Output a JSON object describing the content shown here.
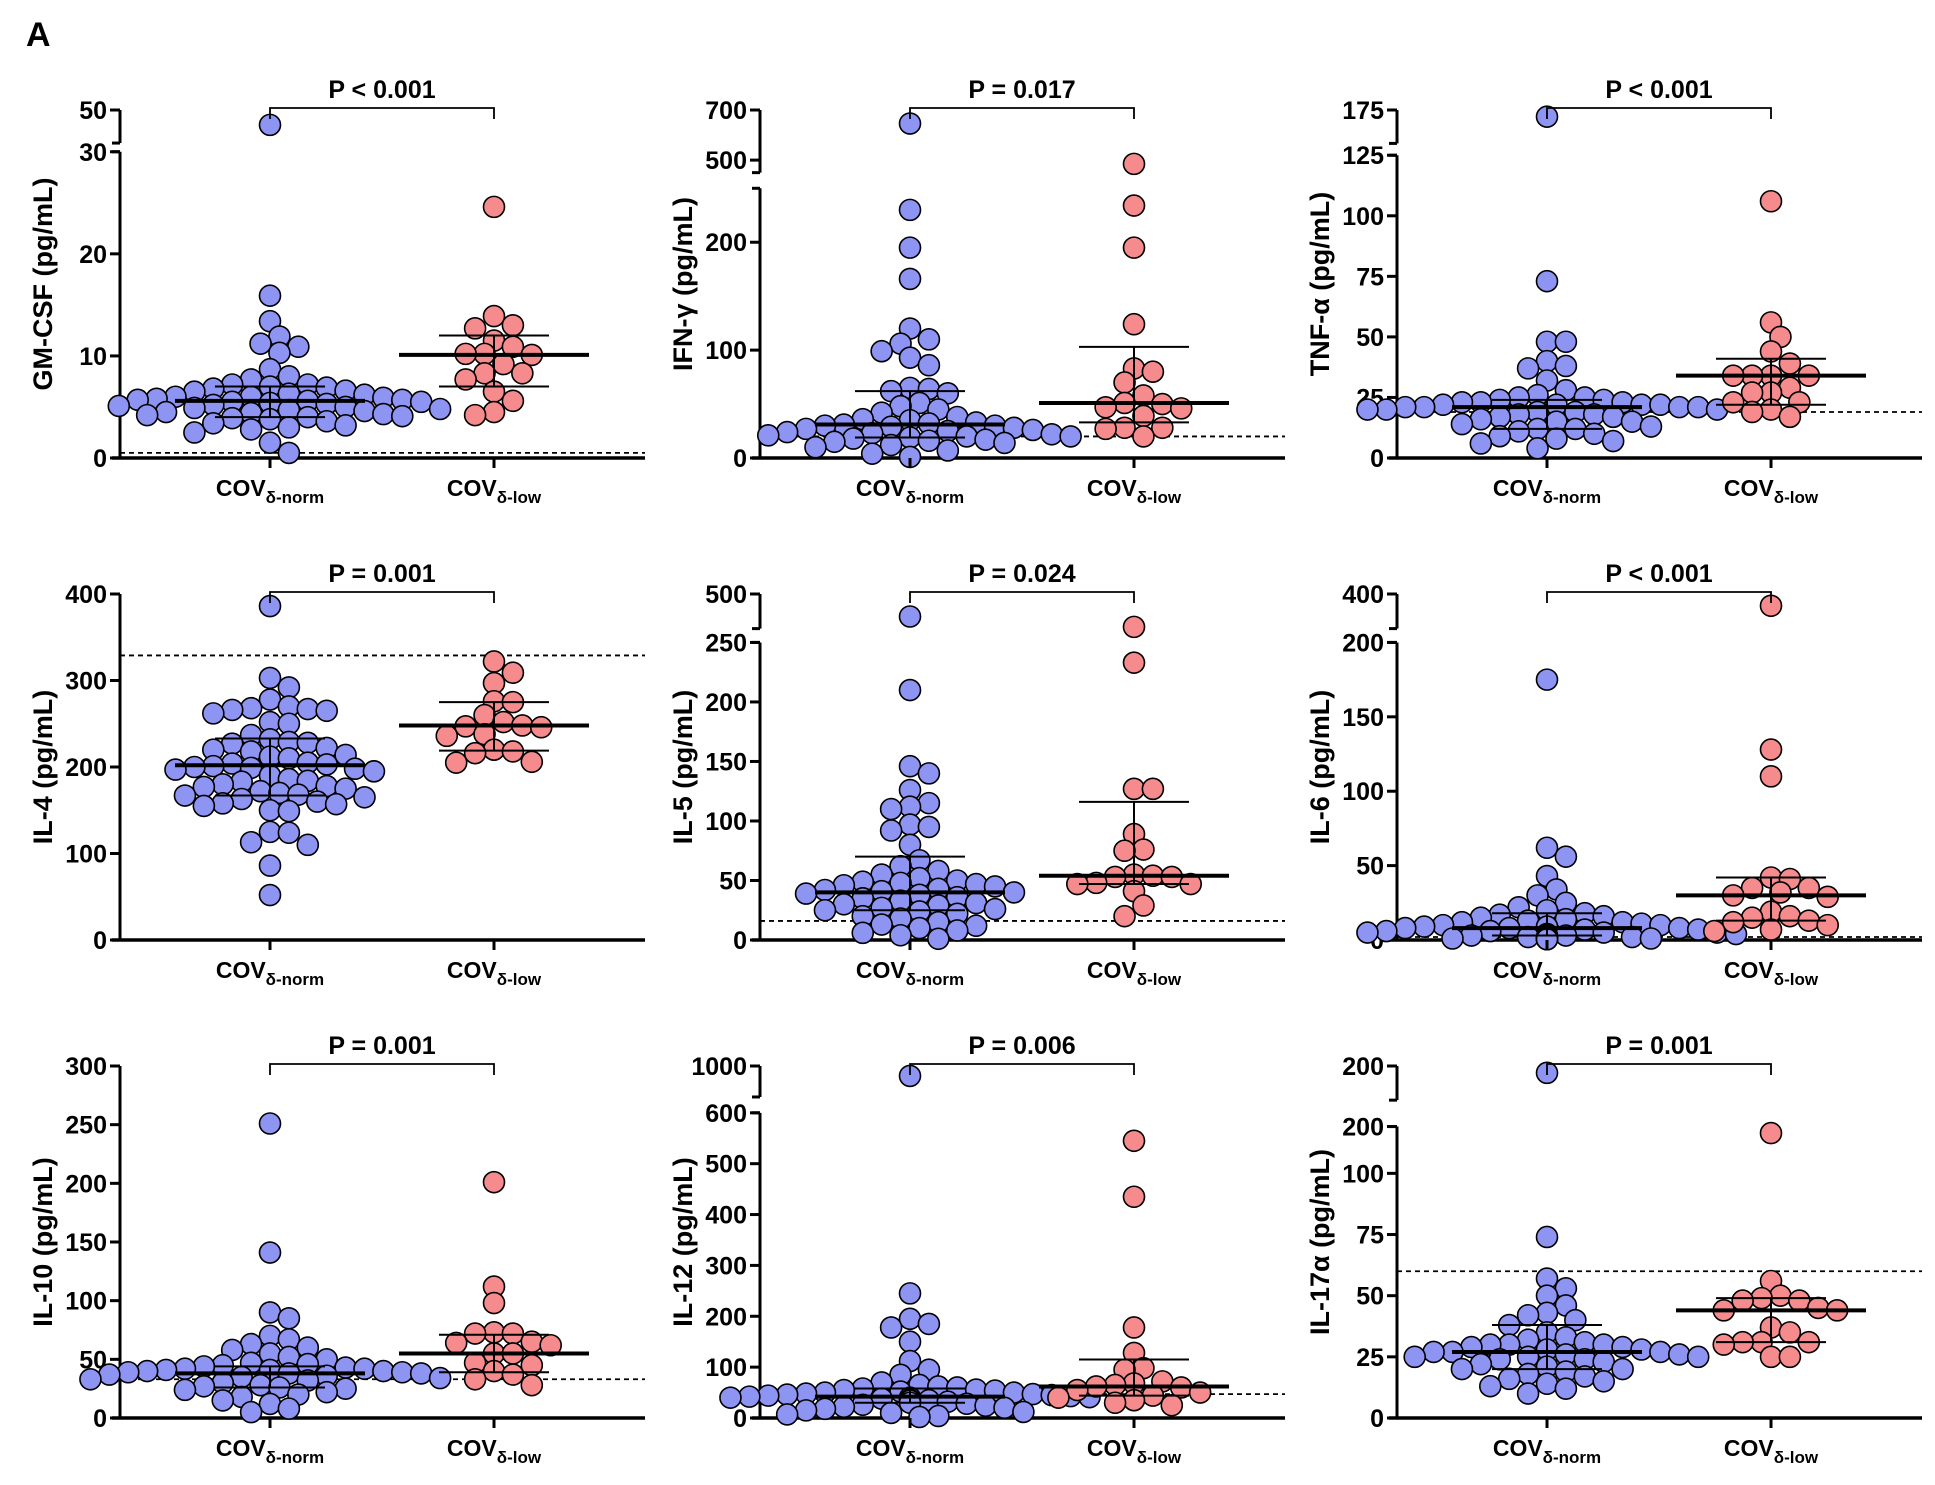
{
  "figure_label": "A",
  "colors": {
    "norm": "#8e94f2",
    "low": "#f58b8c",
    "outline": "#000000"
  },
  "chart_data": {
    "type": "scatter",
    "groups": [
      {
        "main": "COV",
        "sub": "δ-norm"
      },
      {
        "main": "COV",
        "sub": "δ-low"
      }
    ],
    "panels": [
      {
        "ylabel": "GM-CSF (pg/mL)",
        "p_text": "P < 0.001",
        "lod": 0.5,
        "y_axis_segments": [
          {
            "domain": [
              0,
              30
            ],
            "ticks": [
              0,
              10,
              20,
              30
            ]
          },
          {
            "domain": [
              30,
              50
            ],
            "ticks": [
              50
            ],
            "broken": true
          }
        ],
        "norm": {
          "values": [
            15.9,
            13.4,
            11.9,
            11.2,
            10.9,
            10.3,
            8.7,
            8.0,
            7.7,
            7.2,
            7.2,
            7.0,
            6.9,
            6.8,
            6.6,
            6.5,
            6.3,
            6.2,
            6.0,
            6.0,
            5.9,
            5.8,
            5.7,
            5.7,
            5.6,
            5.5,
            5.5,
            5.4,
            5.3,
            5.2,
            5.1,
            5.0,
            4.9,
            4.8,
            4.7,
            4.6,
            4.5,
            4.4,
            4.3,
            4.2,
            4.1,
            4.0,
            3.9,
            3.8,
            3.6,
            3.4,
            3.2,
            3.0,
            2.8,
            2.5,
            1.5,
            0.5
          ],
          "above_break": [
            41
          ],
          "median": 5.6,
          "iqr": [
            4.0,
            7.0
          ]
        },
        "low": {
          "values": [
            24.6,
            13.9,
            13.0,
            12.7,
            11.5,
            10.9,
            10.2,
            10.2,
            10.1,
            9.2,
            8.3,
            8.3,
            7.7,
            6.5,
            5.6,
            4.5,
            4.2
          ],
          "above_break": [],
          "median": 10.1,
          "iqr": [
            7.0,
            12.0
          ]
        }
      },
      {
        "ylabel": "IFN-γ (pg/mL)",
        "p_text": "P = 0.017",
        "lod": 20,
        "y_axis_segments": [
          {
            "domain": [
              0,
              250
            ],
            "ticks": [
              0,
              100,
              200
            ]
          },
          {
            "domain": [
              450,
              700
            ],
            "ticks": [
              500,
              700
            ],
            "broken": true
          }
        ],
        "norm": {
          "values": [
            230,
            195,
            166,
            120,
            110,
            106,
            99,
            93,
            86,
            65,
            64,
            62,
            60,
            51,
            48,
            45,
            42,
            38,
            36,
            35,
            33,
            32,
            31,
            30,
            30,
            29,
            28,
            27,
            26,
            25,
            24,
            23,
            22,
            21,
            20,
            20,
            19,
            18,
            17,
            16,
            15,
            14,
            12,
            10,
            7,
            4,
            1
          ],
          "above_break": [
            646
          ],
          "median": 31,
          "iqr": [
            19,
            62
          ]
        },
        "low": {
          "values": [
            234,
            195,
            124,
            83,
            80,
            70,
            58,
            51,
            50,
            47,
            46,
            39,
            28,
            28,
            27,
            20
          ],
          "above_break": [
            485
          ],
          "median": 51,
          "iqr": [
            33,
            103
          ]
        }
      },
      {
        "ylabel": "TNF-α (pg/mL)",
        "p_text": "P < 0.001",
        "lod": 19,
        "y_axis_segments": [
          {
            "domain": [
              0,
              125
            ],
            "ticks": [
              0,
              25,
              50,
              75,
              100,
              125
            ]
          },
          {
            "domain": [
              150,
              175
            ],
            "ticks": [
              175
            ],
            "broken": true
          }
        ],
        "norm": {
          "values": [
            73,
            48,
            48,
            40,
            38,
            37,
            32,
            28,
            26,
            25,
            25,
            24,
            24,
            23,
            23,
            23,
            22,
            22,
            22,
            22,
            21,
            21,
            21,
            21,
            20,
            20,
            20,
            19,
            19,
            18,
            18,
            17,
            17,
            16,
            15,
            15,
            14,
            13,
            12,
            12,
            11,
            10,
            9,
            8,
            7,
            6,
            4
          ],
          "above_break": [
            170
          ],
          "median": 21,
          "iqr": [
            12,
            24
          ]
        },
        "low": {
          "values": [
            106,
            56,
            50,
            44,
            39,
            34,
            34,
            34,
            34,
            29,
            27,
            27,
            23,
            23,
            20,
            19,
            17
          ],
          "above_break": [],
          "median": 34,
          "iqr": [
            22,
            41
          ]
        }
      },
      {
        "ylabel": "IL-4 (pg/mL)",
        "p_text": "P = 0.001",
        "lod": 329,
        "y_axis_segments": [
          {
            "domain": [
              0,
              400
            ],
            "ticks": [
              0,
              100,
              200,
              300,
              400
            ]
          }
        ],
        "norm": {
          "values": [
            386,
            303,
            292,
            278,
            270,
            268,
            267,
            266,
            265,
            262,
            252,
            250,
            237,
            232,
            229,
            228,
            227,
            222,
            220,
            218,
            214,
            212,
            210,
            205,
            204,
            203,
            201,
            200,
            199,
            198,
            197,
            195,
            190,
            186,
            184,
            183,
            180,
            178,
            177,
            175,
            172,
            170,
            168,
            167,
            165,
            163,
            160,
            158,
            157,
            155,
            150,
            149,
            125,
            124,
            113,
            110,
            86,
            52
          ],
          "above_break": [],
          "median": 202,
          "iqr": [
            167,
            233
          ]
        },
        "low": {
          "values": [
            322,
            309,
            297,
            276,
            275,
            260,
            252,
            248,
            247,
            246,
            238,
            236,
            220,
            218,
            216,
            206,
            205
          ],
          "above_break": [],
          "median": 248,
          "iqr": [
            219,
            275
          ]
        }
      },
      {
        "ylabel": "IL-5 (pg/mL)",
        "p_text": "P = 0.024",
        "lod": 16,
        "y_axis_segments": [
          {
            "domain": [
              0,
              250
            ],
            "ticks": [
              0,
              50,
              100,
              150,
              200,
              250
            ]
          },
          {
            "domain": [
              300,
              500
            ],
            "ticks": [
              500
            ],
            "broken": true
          }
        ],
        "norm": {
          "values": [
            210,
            146,
            140,
            126,
            115,
            112,
            110,
            97,
            95,
            92,
            80,
            67,
            62,
            58,
            55,
            52,
            50,
            49,
            48,
            47,
            46,
            45,
            43,
            42,
            41,
            40,
            39,
            38,
            36,
            35,
            33,
            31,
            30,
            29,
            27,
            26,
            25,
            24,
            22,
            20,
            18,
            15,
            13,
            12,
            10,
            8,
            6,
            4,
            1
          ],
          "above_break": [
            370
          ],
          "median": 40,
          "iqr": [
            25,
            70
          ]
        },
        "low": {
          "values": [
            233,
            127,
            127,
            89,
            76,
            75,
            55,
            54,
            53,
            53,
            48,
            47,
            47,
            41,
            29,
            20
          ],
          "above_break": [
            310
          ],
          "median": 54,
          "iqr": [
            47,
            116
          ]
        }
      },
      {
        "ylabel": "IL-6 (pg/mL)",
        "p_text": "P < 0.001",
        "lod": 2,
        "y_axis_segments": [
          {
            "domain": [
              0,
              200
            ],
            "ticks": [
              0,
              50,
              100,
              150,
              200
            ]
          },
          {
            "domain": [
              300,
              400
            ],
            "ticks": [
              400
            ],
            "broken": true
          }
        ],
        "norm": {
          "values": [
            175,
            62,
            56,
            43,
            34,
            30,
            25,
            22,
            20,
            18,
            17,
            16,
            15,
            14,
            13,
            12,
            12,
            11,
            10,
            10,
            9,
            9,
            8,
            8,
            8,
            7,
            7,
            6,
            6,
            5,
            5,
            5,
            4,
            4,
            4,
            3,
            3,
            3,
            2,
            2,
            2,
            2,
            1,
            1,
            1,
            1,
            0.5,
            0.5,
            0.5
          ],
          "above_break": [],
          "median": 8,
          "iqr": [
            3,
            18
          ]
        },
        "low": {
          "values": [
            128,
            110,
            42,
            41,
            35,
            35,
            32,
            30,
            29,
            19,
            16,
            15,
            13,
            12,
            10,
            7,
            6
          ],
          "above_break": [
            366
          ],
          "median": 30,
          "iqr": [
            13,
            42
          ]
        }
      },
      {
        "ylabel": "IL-10 (pg/mL)",
        "p_text": "P = 0.001",
        "lod": 33,
        "y_axis_segments": [
          {
            "domain": [
              0,
              300
            ],
            "ticks": [
              0,
              50,
              100,
              150,
              200,
              250,
              300
            ]
          }
        ],
        "norm": {
          "values": [
            251,
            141,
            90,
            85,
            70,
            67,
            63,
            60,
            58,
            55,
            52,
            50,
            47,
            46,
            45,
            44,
            43,
            42,
            42,
            41,
            41,
            40,
            40,
            39,
            39,
            38,
            38,
            37,
            36,
            35,
            34,
            33,
            32,
            30,
            28,
            27,
            26,
            25,
            24,
            22,
            20,
            18,
            15,
            12,
            8,
            5
          ],
          "above_break": [],
          "median": 38,
          "iqr": [
            26,
            44
          ]
        },
        "low": {
          "values": [
            201,
            112,
            98,
            73,
            72,
            72,
            65,
            64,
            62,
            55,
            55,
            47,
            45,
            40,
            37,
            33,
            28
          ],
          "above_break": [],
          "median": 55,
          "iqr": [
            39,
            71
          ]
        }
      },
      {
        "ylabel": "IL-12 (pg/mL)",
        "p_text": "P = 0.006",
        "lod": 47,
        "y_axis_segments": [
          {
            "domain": [
              0,
              600
            ],
            "ticks": [
              0,
              100,
              200,
              300,
              400,
              500,
              600
            ]
          },
          {
            "domain": [
              800,
              1000
            ],
            "ticks": [
              1000
            ],
            "broken": true
          }
        ],
        "norm": {
          "values": [
            245,
            195,
            185,
            178,
            150,
            112,
            95,
            85,
            70,
            65,
            62,
            60,
            58,
            56,
            55,
            54,
            52,
            50,
            50,
            48,
            47,
            46,
            45,
            44,
            43,
            42,
            41,
            40,
            40,
            38,
            36,
            35,
            34,
            32,
            30,
            28,
            26,
            24,
            22,
            20,
            18,
            15,
            12,
            10,
            7,
            4,
            2
          ],
          "above_break": [
            936
          ],
          "median": 42,
          "iqr": [
            30,
            58
          ]
        },
        "low": {
          "values": [
            545,
            435,
            178,
            128,
            98,
            95,
            72,
            68,
            65,
            62,
            60,
            55,
            50,
            44,
            40,
            35,
            30,
            25
          ],
          "above_break": [],
          "median": 62,
          "iqr": [
            44,
            115
          ]
        }
      },
      {
        "ylabel": "IL-17α (pg/mL)",
        "p_text": "P = 0.001",
        "lod": 60,
        "y_axis_segments": [
          {
            "domain": [
              0,
              100
            ],
            "ticks": [
              0,
              25,
              50,
              75,
              100
            ]
          },
          {
            "domain": [
              100,
              200
            ],
            "ticks": [
              200
            ]
          },
          {
            "domain": [
              150,
              200
            ],
            "ticks": [
              200
            ],
            "broken": true
          }
        ],
        "norm": {
          "values": [
            74,
            57,
            53,
            50,
            46,
            43,
            42,
            40,
            38,
            35,
            33,
            32,
            31,
            30,
            30,
            30,
            29,
            29,
            28,
            28,
            27,
            27,
            27,
            26,
            26,
            25,
            25,
            25,
            24,
            24,
            23,
            22,
            21,
            20,
            20,
            19,
            18,
            17,
            16,
            15,
            14,
            13,
            12,
            10
          ],
          "above_break": [
            190
          ],
          "median": 27,
          "iqr": [
            20,
            38
          ]
        },
        "low": {
          "values": [
            186,
            56,
            50,
            49,
            48,
            48,
            45,
            44,
            44,
            37,
            35,
            31,
            31,
            31,
            30,
            25,
            25
          ],
          "above_break": [],
          "median": 44,
          "iqr": [
            31,
            49
          ]
        }
      }
    ]
  }
}
